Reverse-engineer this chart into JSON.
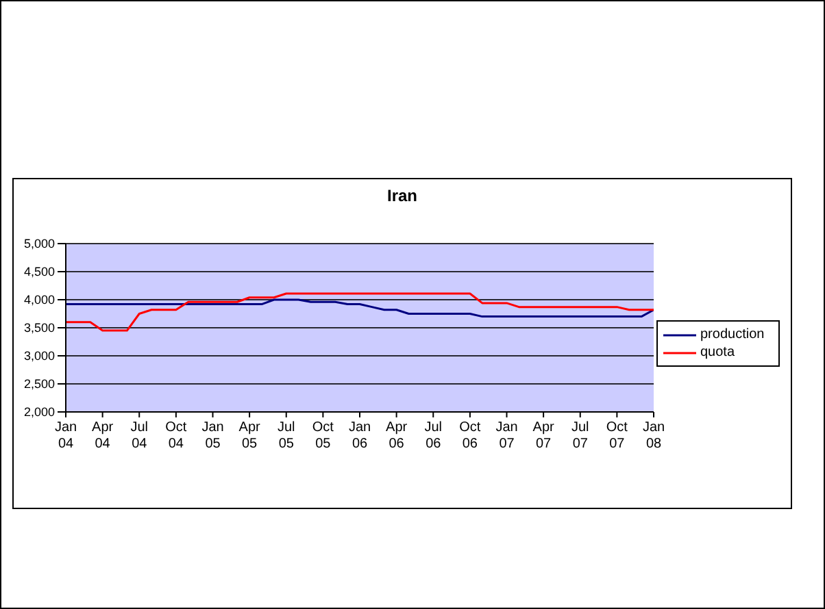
{
  "chart_data": {
    "type": "line",
    "title": "Iran",
    "categories": [
      "Jan 04",
      null,
      null,
      "Apr 04",
      null,
      null,
      "Jul 04",
      null,
      null,
      "Oct 04",
      null,
      null,
      "Jan 05",
      null,
      null,
      "Apr 05",
      null,
      null,
      "Jul 05",
      null,
      null,
      "Oct 05",
      null,
      null,
      "Jan 06",
      null,
      null,
      "Apr 06",
      null,
      null,
      "Jul 06",
      null,
      null,
      "Oct 06",
      null,
      null,
      "Jan 07",
      null,
      null,
      "Apr 07",
      null,
      null,
      "Jul 07",
      null,
      null,
      "Oct 07",
      null,
      null,
      "Jan 08"
    ],
    "series": [
      {
        "name": "production",
        "color": "#000080",
        "values": [
          3920,
          3920,
          3920,
          3920,
          3920,
          3920,
          3920,
          3920,
          3920,
          3920,
          3920,
          3920,
          3920,
          3920,
          3920,
          3920,
          3920,
          4000,
          4000,
          4000,
          3960,
          3960,
          3960,
          3920,
          3920,
          3870,
          3820,
          3820,
          3750,
          3750,
          3750,
          3750,
          3750,
          3750,
          3700,
          3700,
          3700,
          3700,
          3700,
          3700,
          3700,
          3700,
          3700,
          3700,
          3700,
          3700,
          3700,
          3700,
          3820
        ]
      },
      {
        "name": "quota",
        "color": "#ff0000",
        "values": [
          3600,
          3600,
          3600,
          3450,
          3450,
          3450,
          3750,
          3820,
          3820,
          3820,
          3960,
          3960,
          3960,
          3960,
          3960,
          4040,
          4040,
          4040,
          4110,
          4110,
          4110,
          4110,
          4110,
          4110,
          4110,
          4110,
          4110,
          4110,
          4110,
          4110,
          4110,
          4110,
          4110,
          4110,
          3940,
          3940,
          3940,
          3870,
          3870,
          3870,
          3870,
          3870,
          3870,
          3870,
          3870,
          3870,
          3820,
          3820,
          3820
        ]
      }
    ],
    "ylim": [
      2000,
      5000
    ],
    "yticks": [
      {
        "value": 2000,
        "label": "2,000"
      },
      {
        "value": 2500,
        "label": "2,500"
      },
      {
        "value": 3000,
        "label": "3,000"
      },
      {
        "value": 3500,
        "label": "3,500"
      },
      {
        "value": 4000,
        "label": "4,000"
      },
      {
        "value": 4500,
        "label": "4,500"
      },
      {
        "value": 5000,
        "label": "5,000"
      }
    ],
    "grid": "y",
    "legend": "right",
    "marker": "none",
    "line_style": "solid"
  }
}
